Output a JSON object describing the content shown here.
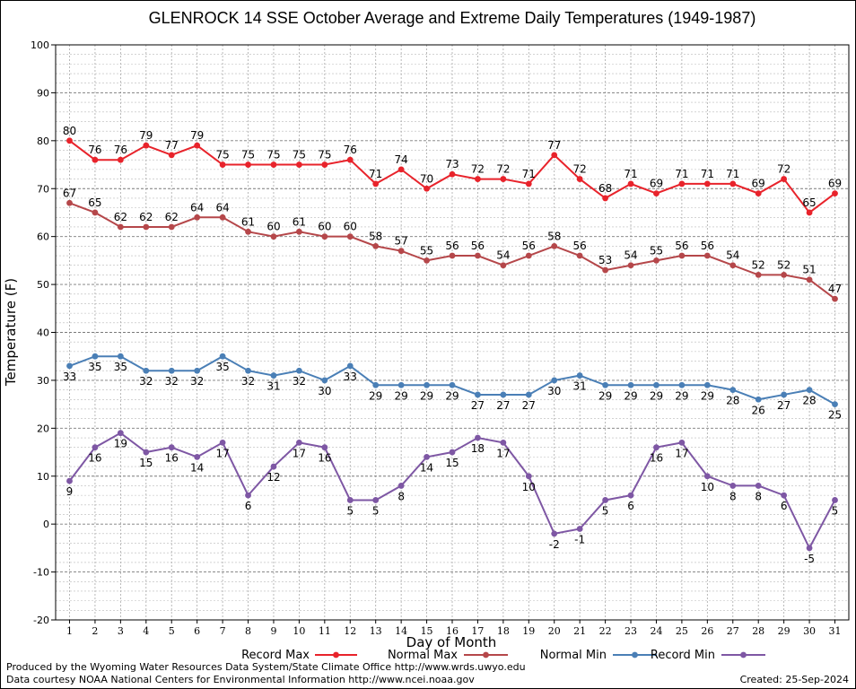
{
  "chart_data": {
    "type": "line",
    "title": "GLENROCK 14 SSE October Average and Extreme Daily Temperatures (1949-1987)",
    "xlabel": "Day of Month",
    "ylabel": "Temperature (F)",
    "ylim": [
      -20,
      100
    ],
    "yticks": [
      -20,
      -10,
      0,
      10,
      20,
      30,
      40,
      50,
      60,
      70,
      80,
      90,
      100
    ],
    "x": [
      1,
      2,
      3,
      4,
      5,
      6,
      7,
      8,
      9,
      10,
      11,
      12,
      13,
      14,
      15,
      16,
      17,
      18,
      19,
      20,
      21,
      22,
      23,
      24,
      25,
      26,
      27,
      28,
      29,
      30,
      31
    ],
    "grid": true,
    "legend_position": "bottom",
    "series": [
      {
        "name": "Record Max",
        "color": "#e8232b",
        "label_position": "above",
        "values": [
          80,
          76,
          76,
          79,
          77,
          79,
          75,
          75,
          75,
          75,
          75,
          76,
          71,
          74,
          70,
          73,
          72,
          72,
          71,
          77,
          72,
          68,
          71,
          69,
          71,
          71,
          71,
          69,
          72,
          65,
          69
        ]
      },
      {
        "name": "Normal Max",
        "color": "#b5474a",
        "label_position": "above",
        "values": [
          67,
          65,
          62,
          62,
          62,
          64,
          64,
          61,
          60,
          61,
          60,
          60,
          58,
          57,
          55,
          56,
          56,
          54,
          56,
          58,
          56,
          53,
          54,
          55,
          56,
          56,
          54,
          52,
          52,
          51,
          47
        ]
      },
      {
        "name": "Normal Min",
        "color": "#4a7fb6",
        "label_position": "below",
        "values": [
          33,
          35,
          35,
          32,
          32,
          32,
          35,
          32,
          31,
          32,
          30,
          33,
          29,
          29,
          29,
          29,
          27,
          27,
          27,
          30,
          31,
          29,
          29,
          29,
          29,
          29,
          28,
          26,
          27,
          28,
          25
        ]
      },
      {
        "name": "Record Min",
        "color": "#7e57a4",
        "label_position": "below",
        "values": [
          9,
          16,
          19,
          15,
          16,
          14,
          17,
          6,
          12,
          17,
          16,
          5,
          5,
          8,
          14,
          15,
          18,
          17,
          10,
          -2,
          -1,
          5,
          6,
          16,
          17,
          10,
          8,
          8,
          6,
          -5,
          5
        ]
      }
    ]
  },
  "footer": {
    "produced_by": "Produced by the Wyoming Water Resources Data System/State Climate Office http://www.wrds.uwyo.edu",
    "courtesy": "Data courtesy NOAA National Centers for Environmental Information http://www.ncei.noaa.gov",
    "created": "Created:  25-Sep-2024"
  }
}
